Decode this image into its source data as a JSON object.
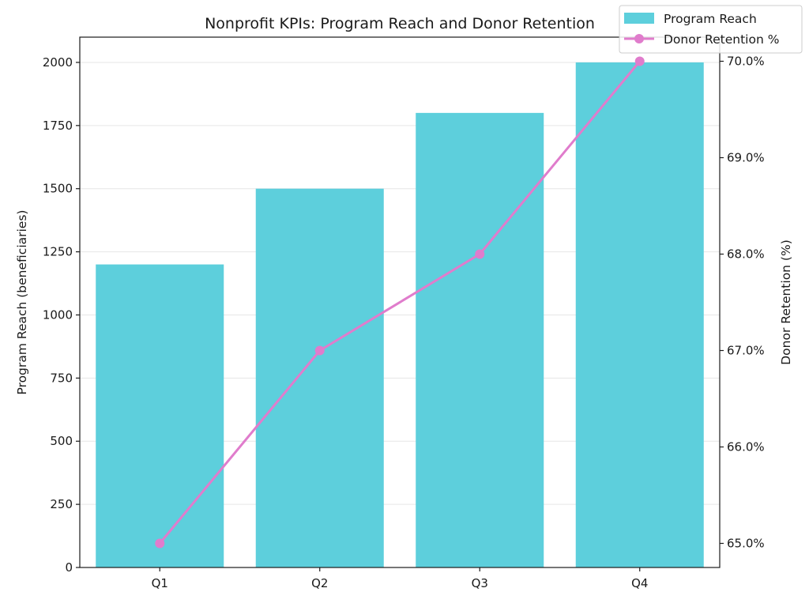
{
  "chart_data": {
    "type": "bar+line",
    "title": "Nonprofit KPIs: Program Reach and Donor Retention",
    "categories": [
      "Q1",
      "Q2",
      "Q3",
      "Q4"
    ],
    "series": [
      {
        "name": "Program Reach",
        "type": "bar",
        "axis": "left",
        "values": [
          1200,
          1500,
          1800,
          2000
        ],
        "color": "#5dcfdc"
      },
      {
        "name": "Donor Retention %",
        "type": "line",
        "axis": "right",
        "values": [
          65.0,
          67.0,
          68.0,
          70.0
        ],
        "color": "#e07ccc"
      }
    ],
    "ylabel_left": "Program Reach (beneficiaries)",
    "ylabel_right": "Donor Retention (%)",
    "ylim_left": [
      0,
      2100
    ],
    "ylim_right": [
      64.75,
      70.25
    ],
    "yticks_left": [
      0,
      250,
      500,
      750,
      1000,
      1250,
      1500,
      1750,
      2000
    ],
    "yticks_right": [
      "65.0%",
      "66.0%",
      "67.0%",
      "68.0%",
      "69.0%",
      "70.0%"
    ],
    "yticks_right_values": [
      65,
      66,
      67,
      68,
      69,
      70
    ],
    "grid": "horizontal",
    "legend_position": "top-right"
  }
}
